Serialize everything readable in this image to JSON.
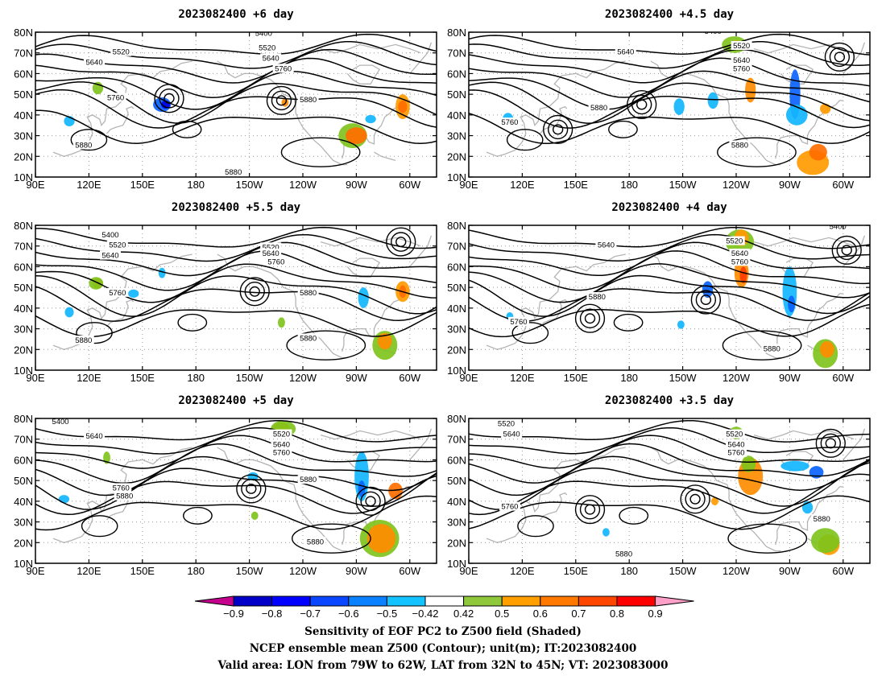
{
  "panels": [
    {
      "title": "2023082400 +6 day",
      "contour_labels": [
        {
          "text": "5400",
          "lon": 218,
          "lat": 79
        },
        {
          "text": "5520",
          "lon": 220,
          "lat": 72
        },
        {
          "text": "5520",
          "lon": 138,
          "lat": 70
        },
        {
          "text": "5640",
          "lon": 222,
          "lat": 67
        },
        {
          "text": "5640",
          "lon": 123,
          "lat": 65
        },
        {
          "text": "5760",
          "lon": 229,
          "lat": 62
        },
        {
          "text": "5760",
          "lon": 135,
          "lat": 48
        },
        {
          "text": "5880",
          "lon": 243,
          "lat": 47
        },
        {
          "text": "5880",
          "lon": 117,
          "lat": 25
        },
        {
          "text": "5880",
          "lon": 201,
          "lat": 12
        }
      ],
      "anomalies": [
        {
          "lon": 109,
          "lat": 37,
          "rx": 3,
          "ry": 2.5,
          "color": "#12b6ff"
        },
        {
          "lon": 125,
          "lat": 53,
          "rx": 3,
          "ry": 3,
          "color": "#7fc31c"
        },
        {
          "lon": 161,
          "lat": 45,
          "rx": 5,
          "ry": 3.5,
          "color": "#0a64ff"
        },
        {
          "lon": 163,
          "lat": 45,
          "rx": 2.5,
          "ry": 2,
          "color": "#0000e0"
        },
        {
          "lon": 230,
          "lat": 46,
          "rx": 2,
          "ry": 2,
          "color": "#ff8c00"
        },
        {
          "lon": 268,
          "lat": 30,
          "rx": 8,
          "ry": 6,
          "color": "#7fc31c"
        },
        {
          "lon": 270,
          "lat": 30,
          "rx": 6,
          "ry": 4,
          "color": "#ff6e00"
        },
        {
          "lon": 296,
          "lat": 44,
          "rx": 4,
          "ry": 6,
          "color": "#ff9a00"
        },
        {
          "lon": 296,
          "lat": 44,
          "rx": 2.5,
          "ry": 3,
          "color": "#ff6e00"
        },
        {
          "lon": 278,
          "lat": 38,
          "rx": 3,
          "ry": 2,
          "color": "#12b6ff"
        }
      ]
    },
    {
      "title": "2023082400 +4.5 day",
      "contour_labels": [
        {
          "text": "5400",
          "lon": 227,
          "lat": 80
        },
        {
          "text": "5520",
          "lon": 243,
          "lat": 73
        },
        {
          "text": "5640",
          "lon": 178,
          "lat": 70
        },
        {
          "text": "5640",
          "lon": 243,
          "lat": 66
        },
        {
          "text": "5760",
          "lon": 243,
          "lat": 62
        },
        {
          "text": "5880",
          "lon": 163,
          "lat": 43
        },
        {
          "text": "5760",
          "lon": 113,
          "lat": 36
        },
        {
          "text": "5880",
          "lon": 242,
          "lat": 25
        }
      ],
      "anomalies": [
        {
          "lon": 239,
          "lat": 74,
          "rx": 7,
          "ry": 4,
          "color": "#7fc31c"
        },
        {
          "lon": 240,
          "lat": 74,
          "rx": 3,
          "ry": 2,
          "color": "#ff9a00"
        },
        {
          "lon": 227,
          "lat": 47,
          "rx": 3,
          "ry": 4,
          "color": "#12b6ff"
        },
        {
          "lon": 248,
          "lat": 52,
          "rx": 3,
          "ry": 6,
          "color": "#ff8c00"
        },
        {
          "lon": 273,
          "lat": 50,
          "rx": 3,
          "ry": 12,
          "color": "#0a64ff"
        },
        {
          "lon": 274,
          "lat": 40,
          "rx": 6,
          "ry": 5,
          "color": "#12b6ff"
        },
        {
          "lon": 290,
          "lat": 43,
          "rx": 3,
          "ry": 2.5,
          "color": "#ff9a00"
        },
        {
          "lon": 283,
          "lat": 17,
          "rx": 9,
          "ry": 6,
          "color": "#ff9a00"
        },
        {
          "lon": 286,
          "lat": 22,
          "rx": 5,
          "ry": 4,
          "color": "#ff6e00"
        },
        {
          "lon": 112,
          "lat": 38,
          "rx": 3,
          "ry": 3,
          "color": "#12b6ff"
        },
        {
          "lon": 208,
          "lat": 44,
          "rx": 3,
          "ry": 4,
          "color": "#12b6ff"
        }
      ]
    },
    {
      "title": "2023082400 +5.5 day",
      "contour_labels": [
        {
          "text": "5400",
          "lon": 132,
          "lat": 75
        },
        {
          "text": "5520",
          "lon": 136,
          "lat": 70
        },
        {
          "text": "5640",
          "lon": 132,
          "lat": 65
        },
        {
          "text": "5520",
          "lon": 222,
          "lat": 69
        },
        {
          "text": "5640",
          "lon": 222,
          "lat": 66
        },
        {
          "text": "5760",
          "lon": 225,
          "lat": 62
        },
        {
          "text": "5760",
          "lon": 136,
          "lat": 47
        },
        {
          "text": "5880",
          "lon": 243,
          "lat": 47
        },
        {
          "text": "5880",
          "lon": 117,
          "lat": 24
        },
        {
          "text": "5880",
          "lon": 243,
          "lat": 25
        }
      ],
      "anomalies": [
        {
          "lon": 125,
          "lat": 52,
          "rx": 3,
          "ry": 2.5,
          "color": "#ff9a00"
        },
        {
          "lon": 124,
          "lat": 52,
          "rx": 4,
          "ry": 3,
          "color": "#7fc31c"
        },
        {
          "lon": 109,
          "lat": 38,
          "rx": 2.5,
          "ry": 2.5,
          "color": "#12b6ff"
        },
        {
          "lon": 145,
          "lat": 47,
          "rx": 3,
          "ry": 2,
          "color": "#12b6ff"
        },
        {
          "lon": 161,
          "lat": 57,
          "rx": 2,
          "ry": 2.5,
          "color": "#12b6ff"
        },
        {
          "lon": 228,
          "lat": 33,
          "rx": 2,
          "ry": 2.5,
          "color": "#7fc31c"
        },
        {
          "lon": 274,
          "lat": 45,
          "rx": 3,
          "ry": 5,
          "color": "#12b6ff"
        },
        {
          "lon": 296,
          "lat": 48,
          "rx": 4,
          "ry": 5,
          "color": "#ff9a00"
        },
        {
          "lon": 296,
          "lat": 48,
          "rx": 2,
          "ry": 3,
          "color": "#ff6e00"
        },
        {
          "lon": 286,
          "lat": 22,
          "rx": 7,
          "ry": 7,
          "color": "#7fc31c"
        },
        {
          "lon": 286,
          "lat": 24,
          "rx": 4,
          "ry": 4,
          "color": "#ff8c00"
        }
      ]
    },
    {
      "title": "2023082400 +4 day",
      "contour_labels": [
        {
          "text": "5400",
          "lon": 297,
          "lat": 79
        },
        {
          "text": "5640",
          "lon": 167,
          "lat": 70
        },
        {
          "text": "5520",
          "lon": 239,
          "lat": 72
        },
        {
          "text": "5640",
          "lon": 242,
          "lat": 66
        },
        {
          "text": "5760",
          "lon": 242,
          "lat": 62
        },
        {
          "text": "5880",
          "lon": 162,
          "lat": 45
        },
        {
          "text": "5760",
          "lon": 118,
          "lat": 33
        },
        {
          "text": "5880",
          "lon": 260,
          "lat": 20
        }
      ],
      "anomalies": [
        {
          "lon": 242,
          "lat": 72,
          "rx": 8,
          "ry": 6,
          "color": "#7fc31c"
        },
        {
          "lon": 243,
          "lat": 74,
          "rx": 4,
          "ry": 4,
          "color": "#ff9a00"
        },
        {
          "lon": 243,
          "lat": 57,
          "rx": 4,
          "ry": 7,
          "color": "#ff8c00"
        },
        {
          "lon": 244,
          "lat": 56,
          "rx": 2,
          "ry": 4,
          "color": "#ff3c00"
        },
        {
          "lon": 224,
          "lat": 49,
          "rx": 3,
          "ry": 4,
          "color": "#0a64ff"
        },
        {
          "lon": 270,
          "lat": 48,
          "rx": 4,
          "ry": 12,
          "color": "#12b6ff"
        },
        {
          "lon": 271,
          "lat": 42,
          "rx": 2,
          "ry": 4,
          "color": "#0a64ff"
        },
        {
          "lon": 290,
          "lat": 18,
          "rx": 7,
          "ry": 7,
          "color": "#7fc31c"
        },
        {
          "lon": 291,
          "lat": 20,
          "rx": 4,
          "ry": 4,
          "color": "#ff8c00"
        },
        {
          "lon": 113,
          "lat": 36,
          "rx": 2,
          "ry": 2,
          "color": "#12b6ff"
        },
        {
          "lon": 209,
          "lat": 32,
          "rx": 2,
          "ry": 2,
          "color": "#12b6ff"
        }
      ]
    },
    {
      "title": "2023082400 +5 day",
      "contour_labels": [
        {
          "text": "5400",
          "lon": 104,
          "lat": 78
        },
        {
          "text": "5640",
          "lon": 123,
          "lat": 71
        },
        {
          "text": "5520",
          "lon": 228,
          "lat": 72
        },
        {
          "text": "5640",
          "lon": 228,
          "lat": 67
        },
        {
          "text": "5760",
          "lon": 228,
          "lat": 63
        },
        {
          "text": "5760",
          "lon": 138,
          "lat": 46
        },
        {
          "text": "5880",
          "lon": 140,
          "lat": 42
        },
        {
          "text": "5880",
          "lon": 243,
          "lat": 50
        },
        {
          "text": "5880",
          "lon": 247,
          "lat": 20
        }
      ],
      "anomalies": [
        {
          "lon": 228,
          "lat": 75,
          "rx": 5,
          "ry": 3,
          "color": "#ff9a00"
        },
        {
          "lon": 229,
          "lat": 75,
          "rx": 7,
          "ry": 4,
          "color": "#7fc31c"
        },
        {
          "lon": 130,
          "lat": 61,
          "rx": 2,
          "ry": 3,
          "color": "#7fc31c"
        },
        {
          "lon": 106,
          "lat": 41,
          "rx": 3,
          "ry": 2,
          "color": "#12b6ff"
        },
        {
          "lon": 212,
          "lat": 52,
          "rx": 3,
          "ry": 2,
          "color": "#12b6ff"
        },
        {
          "lon": 273,
          "lat": 52,
          "rx": 4,
          "ry": 12,
          "color": "#12b6ff"
        },
        {
          "lon": 273,
          "lat": 46,
          "rx": 2,
          "ry": 4,
          "color": "#0a64ff"
        },
        {
          "lon": 292,
          "lat": 45,
          "rx": 4,
          "ry": 4,
          "color": "#ff6e00"
        },
        {
          "lon": 283,
          "lat": 22,
          "rx": 11,
          "ry": 9,
          "color": "#7fc31c"
        },
        {
          "lon": 284,
          "lat": 22,
          "rx": 8,
          "ry": 7,
          "color": "#ff8c00"
        },
        {
          "lon": 213,
          "lat": 33,
          "rx": 2,
          "ry": 2,
          "color": "#7fc31c"
        }
      ]
    },
    {
      "title": "2023082400 +3.5 day",
      "contour_labels": [
        {
          "text": "5520",
          "lon": 111,
          "lat": 77
        },
        {
          "text": "5640",
          "lon": 114,
          "lat": 72
        },
        {
          "text": "5520",
          "lon": 239,
          "lat": 72
        },
        {
          "text": "5640",
          "lon": 240,
          "lat": 67
        },
        {
          "text": "5760",
          "lon": 240,
          "lat": 63
        },
        {
          "text": "5760",
          "lon": 113,
          "lat": 37
        },
        {
          "text": "5880",
          "lon": 288,
          "lat": 31
        },
        {
          "text": "5880",
          "lon": 177,
          "lat": 14
        }
      ],
      "anomalies": [
        {
          "lon": 240,
          "lat": 73,
          "rx": 4,
          "ry": 3,
          "color": "#7fc31c"
        },
        {
          "lon": 248,
          "lat": 52,
          "rx": 7,
          "ry": 9,
          "color": "#ff8c00"
        },
        {
          "lon": 247,
          "lat": 58,
          "rx": 4,
          "ry": 4,
          "color": "#7fc31c"
        },
        {
          "lon": 273,
          "lat": 57,
          "rx": 8,
          "ry": 2.5,
          "color": "#12b6ff"
        },
        {
          "lon": 285,
          "lat": 54,
          "rx": 4,
          "ry": 3,
          "color": "#0a64ff"
        },
        {
          "lon": 280,
          "lat": 37,
          "rx": 3,
          "ry": 3,
          "color": "#12b6ff"
        },
        {
          "lon": 292,
          "lat": 19,
          "rx": 6,
          "ry": 5,
          "color": "#ff9a00"
        },
        {
          "lon": 290,
          "lat": 21,
          "rx": 8,
          "ry": 6,
          "color": "#7fc31c"
        },
        {
          "lon": 228,
          "lat": 40,
          "rx": 2,
          "ry": 2,
          "color": "#ff9a00"
        },
        {
          "lon": 167,
          "lat": 25,
          "rx": 2,
          "ry": 2,
          "color": "#12b6ff"
        }
      ]
    }
  ],
  "axes": {
    "x_ticks": [
      "90E",
      "120E",
      "150E",
      "180",
      "150W",
      "120W",
      "90W",
      "60W"
    ],
    "x_values": [
      90,
      120,
      150,
      180,
      210,
      240,
      270,
      300
    ],
    "y_ticks": [
      "10N",
      "20N",
      "30N",
      "40N",
      "50N",
      "60N",
      "70N",
      "80N"
    ],
    "y_values": [
      10,
      20,
      30,
      40,
      50,
      60,
      70,
      80
    ],
    "lon_range": [
      90,
      315
    ],
    "lat_range": [
      10,
      80
    ]
  },
  "colorbar": {
    "labels": [
      "−0.9",
      "−0.8",
      "−0.7",
      "−0.6",
      "−0.5",
      "−0.42",
      "0.42",
      "0.5",
      "0.6",
      "0.7",
      "0.8",
      "0.9"
    ],
    "low_end_color": "#c4008c",
    "high_end_color": "#ffa0c8",
    "colors": [
      "#0000c8",
      "#0000ff",
      "#0a46ff",
      "#0a82ff",
      "#12c3ff",
      "#ffffff",
      "#90c83c",
      "#ffa000",
      "#ff7800",
      "#ff4600",
      "#ff0000"
    ]
  },
  "footer": {
    "line1": "Sensitivity of EOF PC2 to Z500 field (Shaded)",
    "line2": "NCEP ensemble mean Z500 (Contour); unit(m); IT:2023082400",
    "line3": "Valid area: LON from 79W to 62W, LAT from 32N to 45N; VT: 2023083000"
  }
}
